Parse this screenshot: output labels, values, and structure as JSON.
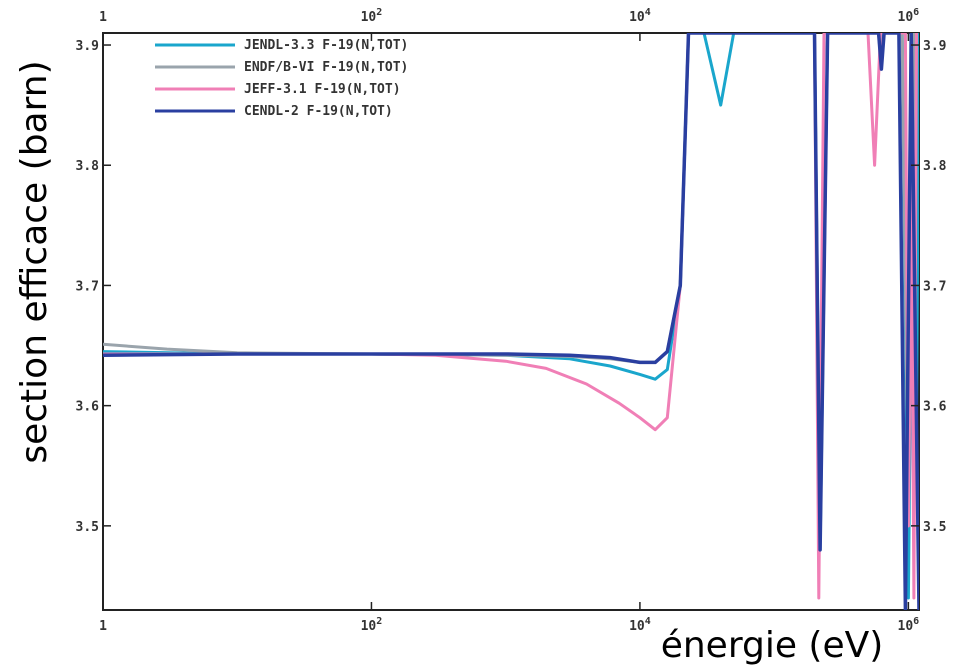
{
  "chart_data": {
    "type": "line",
    "xlabel": "énergie (eV)",
    "ylabel": "section efficace (barn)",
    "xscale": "log",
    "xlim": [
      1,
      1200000
    ],
    "ylim": [
      3.43,
      3.91
    ],
    "x_ticks": [
      {
        "value": 1,
        "base": "1",
        "exp": ""
      },
      {
        "value": 100,
        "base": "10",
        "exp": "2"
      },
      {
        "value": 10000,
        "base": "10",
        "exp": "4"
      },
      {
        "value": 1000000,
        "base": "10",
        "exp": "6"
      }
    ],
    "y_ticks": [
      "3.5",
      "3.6",
      "3.7",
      "3.8",
      "3.9"
    ],
    "grid": false,
    "legend_position": "top-left",
    "series": [
      {
        "name": "JENDL-3.3 F-19(N,TOT)",
        "color": "#1aa6cc",
        "points": [
          [
            1,
            3.645
          ],
          [
            10,
            3.643
          ],
          [
            100,
            3.643
          ],
          [
            1000,
            3.642
          ],
          [
            3000,
            3.639
          ],
          [
            6000,
            3.633
          ],
          [
            10000,
            3.626
          ],
          [
            13000,
            3.622
          ],
          [
            16000,
            3.63
          ],
          [
            20000,
            3.7
          ],
          [
            23000,
            3.91
          ],
          [
            30000,
            3.91
          ],
          [
            40000,
            3.85
          ],
          [
            50000,
            3.91
          ],
          [
            200000,
            3.91
          ],
          [
            220000,
            3.48
          ],
          [
            250000,
            3.91
          ],
          [
            600000,
            3.91
          ],
          [
            620000,
            3.89
          ],
          [
            640000,
            3.91
          ],
          [
            900000,
            3.91
          ],
          [
            1000000,
            3.44
          ],
          [
            1100000,
            3.91
          ],
          [
            1150000,
            3.59
          ],
          [
            1200000,
            3.91
          ]
        ]
      },
      {
        "name": "ENDF/B-VI F-19(N,TOT)",
        "color": "#9aa4ac",
        "points": [
          [
            1,
            3.651
          ],
          [
            3,
            3.647
          ],
          [
            10,
            3.644
          ],
          [
            100,
            3.643
          ],
          [
            1000,
            3.642
          ],
          [
            3000,
            3.641
          ],
          [
            6000,
            3.639
          ],
          [
            10000,
            3.636
          ],
          [
            13000,
            3.636
          ],
          [
            16000,
            3.645
          ],
          [
            20000,
            3.7
          ],
          [
            23000,
            3.91
          ],
          [
            200000,
            3.91
          ],
          [
            220000,
            3.5
          ],
          [
            250000,
            3.91
          ],
          [
            900000,
            3.91
          ],
          [
            1000000,
            3.5
          ],
          [
            1100000,
            3.91
          ]
        ]
      },
      {
        "name": "JEFF-3.1 F-19(N,TOT)",
        "color": "#f07fb6",
        "points": [
          [
            1,
            3.643
          ],
          [
            10,
            3.643
          ],
          [
            100,
            3.643
          ],
          [
            300,
            3.642
          ],
          [
            1000,
            3.637
          ],
          [
            2000,
            3.631
          ],
          [
            4000,
            3.618
          ],
          [
            7000,
            3.602
          ],
          [
            10000,
            3.59
          ],
          [
            13000,
            3.58
          ],
          [
            16000,
            3.59
          ],
          [
            20000,
            3.7
          ],
          [
            23000,
            3.91
          ],
          [
            200000,
            3.91
          ],
          [
            215000,
            3.44
          ],
          [
            235000,
            3.91
          ],
          [
            500000,
            3.91
          ],
          [
            560000,
            3.8
          ],
          [
            620000,
            3.91
          ],
          [
            950000,
            3.91
          ],
          [
            1000000,
            3.5
          ],
          [
            1050000,
            3.79
          ],
          [
            1100000,
            3.44
          ],
          [
            1150000,
            3.91
          ]
        ]
      },
      {
        "name": "CENDL-2 F-19(N,TOT)",
        "color": "#2a3fa0",
        "points": [
          [
            1,
            3.642
          ],
          [
            10,
            3.643
          ],
          [
            100,
            3.643
          ],
          [
            1000,
            3.643
          ],
          [
            3000,
            3.642
          ],
          [
            6000,
            3.64
          ],
          [
            10000,
            3.636
          ],
          [
            13000,
            3.636
          ],
          [
            16000,
            3.645
          ],
          [
            20000,
            3.7
          ],
          [
            23000,
            3.91
          ],
          [
            200000,
            3.91
          ],
          [
            220000,
            3.48
          ],
          [
            250000,
            3.91
          ],
          [
            600000,
            3.91
          ],
          [
            630000,
            3.88
          ],
          [
            660000,
            3.91
          ],
          [
            850000,
            3.91
          ],
          [
            950000,
            3.43
          ],
          [
            1050000,
            3.91
          ],
          [
            1200000,
            3.43
          ]
        ]
      }
    ]
  }
}
